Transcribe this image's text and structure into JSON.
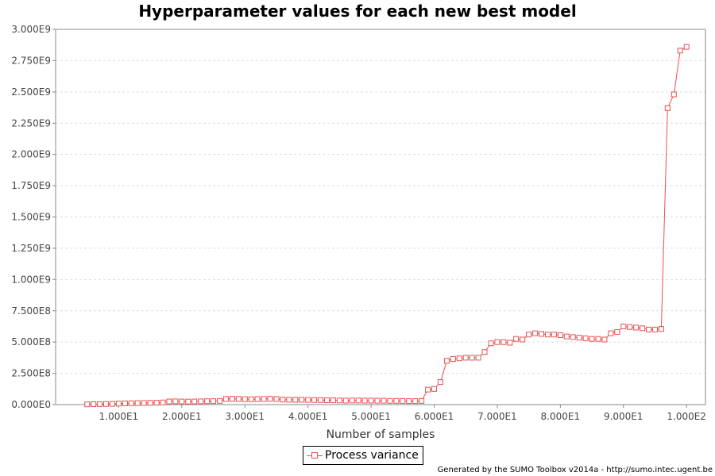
{
  "chart_data": {
    "type": "line",
    "title": "Hyperparameter values for each new best model",
    "xlabel": "Number of samples",
    "ylabel": "",
    "xlim": [
      0,
      103
    ],
    "ylim": [
      0,
      3000000000
    ],
    "x_ticks": [
      10,
      20,
      30,
      40,
      50,
      60,
      70,
      80,
      90,
      100
    ],
    "x_tick_labels": [
      "1.000E1",
      "2.000E1",
      "3.000E1",
      "4.000E1",
      "5.000E1",
      "6.000E1",
      "7.000E1",
      "8.000E1",
      "9.000E1",
      "1.000E2"
    ],
    "y_ticks": [
      0,
      250000000,
      500000000,
      750000000,
      1000000000,
      1250000000,
      1500000000,
      1750000000,
      2000000000,
      2250000000,
      2500000000,
      2750000000,
      3000000000
    ],
    "y_tick_labels": [
      "0.000E0",
      "2.500E8",
      "5.000E8",
      "7.500E8",
      "1.000E9",
      "1.250E9",
      "1.500E9",
      "1.750E9",
      "2.000E9",
      "2.250E9",
      "2.500E9",
      "2.750E9",
      "3.000E9"
    ],
    "grid": true,
    "legend_position": "bottom-center",
    "series": [
      {
        "name": "Process variance",
        "color": "#e85050",
        "marker": "square",
        "x": [
          5,
          6,
          7,
          8,
          9,
          10,
          11,
          12,
          13,
          14,
          15,
          16,
          17,
          18,
          19,
          20,
          21,
          22,
          23,
          24,
          25,
          26,
          27,
          28,
          29,
          30,
          31,
          32,
          33,
          34,
          35,
          36,
          37,
          38,
          39,
          40,
          41,
          42,
          43,
          44,
          45,
          46,
          47,
          48,
          49,
          50,
          51,
          52,
          53,
          54,
          55,
          56,
          57,
          58,
          59,
          60,
          61,
          62,
          63,
          64,
          65,
          66,
          67,
          68,
          69,
          70,
          71,
          72,
          73,
          74,
          75,
          76,
          77,
          78,
          79,
          80,
          81,
          82,
          83,
          84,
          85,
          86,
          87,
          88,
          89,
          90,
          91,
          92,
          93,
          94,
          95,
          96,
          97,
          98,
          99,
          100
        ],
        "y": [
          2000000,
          3000000,
          4000000,
          5000000,
          6000000,
          8000000,
          10000000,
          11000000,
          12000000,
          13000000,
          14000000,
          15000000,
          17000000,
          25000000,
          26000000,
          25000000,
          24000000,
          25000000,
          26000000,
          27000000,
          28000000,
          30000000,
          45000000,
          46000000,
          45000000,
          44000000,
          43000000,
          44000000,
          45000000,
          46000000,
          45000000,
          40000000,
          39000000,
          38000000,
          39000000,
          38000000,
          37000000,
          36000000,
          35000000,
          34000000,
          33000000,
          32000000,
          33000000,
          33000000,
          32000000,
          32000000,
          31000000,
          31000000,
          30000000,
          30000000,
          29000000,
          28000000,
          28000000,
          29000000,
          120000000,
          125000000,
          180000000,
          350000000,
          365000000,
          370000000,
          375000000,
          375000000,
          375000000,
          420000000,
          490000000,
          500000000,
          500000000,
          495000000,
          525000000,
          520000000,
          560000000,
          570000000,
          565000000,
          560000000,
          560000000,
          555000000,
          545000000,
          540000000,
          535000000,
          530000000,
          525000000,
          525000000,
          520000000,
          570000000,
          580000000,
          625000000,
          620000000,
          615000000,
          610000000,
          600000000,
          600000000,
          605000000,
          2370000000,
          2480000000,
          2830000000,
          2860000000
        ]
      }
    ]
  },
  "legend": {
    "label": "Process variance"
  },
  "footer": "Generated by the SUMO Toolbox v2014a - http://sumo.intec.ugent.be"
}
